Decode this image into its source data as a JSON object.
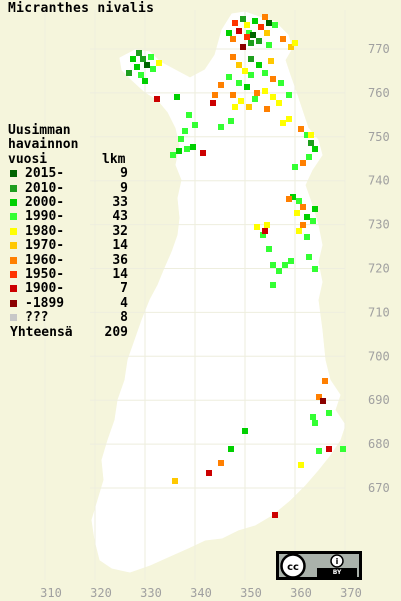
{
  "title": "Micranthes nivalis",
  "legend": {
    "header_line1": "Uusimman",
    "header_line2": "havainnon",
    "header_line3_left": "vuosi",
    "header_line3_right": "lkm",
    "items": [
      {
        "label": "2015-",
        "count": "9",
        "color": "#006400"
      },
      {
        "label": "2010-",
        "count": "9",
        "color": "#1e9e1e"
      },
      {
        "label": "2000-",
        "count": "33",
        "color": "#00d000"
      },
      {
        "label": "1990-",
        "count": "43",
        "color": "#33ff33"
      },
      {
        "label": "1980-",
        "count": "32",
        "color": "#ffff00"
      },
      {
        "label": "1970-",
        "count": "14",
        "color": "#ffc800"
      },
      {
        "label": "1960-",
        "count": "36",
        "color": "#ff7f00"
      },
      {
        "label": "1950-",
        "count": "14",
        "color": "#ff3300"
      },
      {
        "label": "1900-",
        "count": "7",
        "color": "#cc0000"
      },
      {
        "label": "-1899",
        "count": "4",
        "color": "#8b0000"
      },
      {
        "label": "???",
        "count": "8",
        "color": "#c8c8c8"
      }
    ],
    "total_label": "Yhteensä",
    "total_count": "209"
  },
  "axes": {
    "y_ticks": [
      "770",
      "760",
      "750",
      "740",
      "730",
      "720",
      "710",
      "700",
      "690",
      "680",
      "670"
    ],
    "x_ticks": [
      "310",
      "320",
      "330",
      "340",
      "350",
      "360",
      "370"
    ]
  },
  "license": {
    "cc": "cc",
    "info": "i",
    "by": "BY"
  },
  "colors": {
    "background": "#f5f5dc",
    "land": "#ffffff",
    "boundary": "#d8d8c0",
    "grid": "#e6e6d0"
  }
}
